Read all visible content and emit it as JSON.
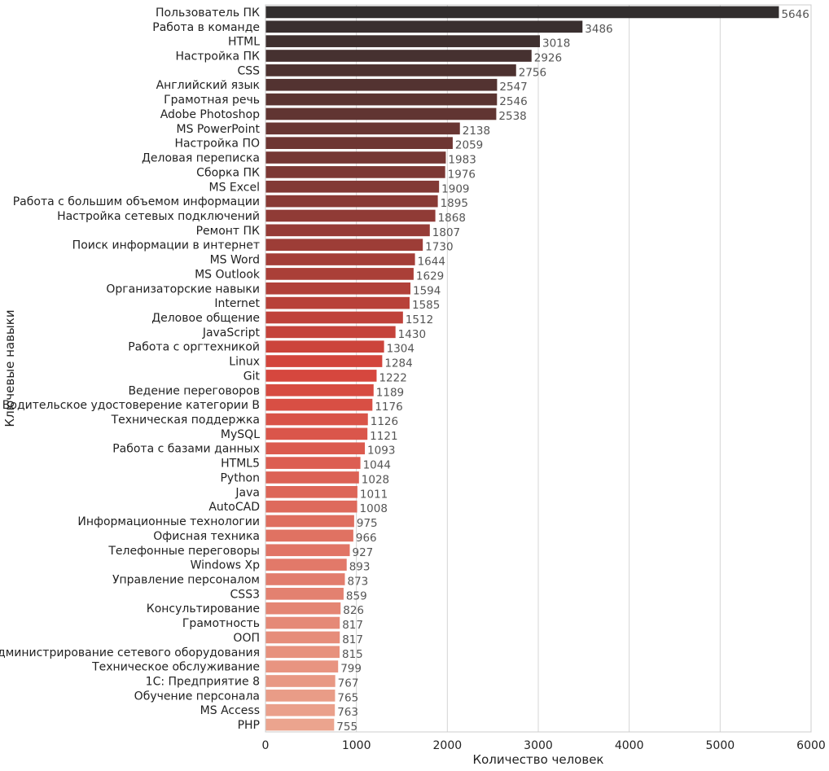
{
  "chart_data": {
    "type": "bar",
    "orientation": "horizontal",
    "xlabel": "Количество человек",
    "ylabel": "Ключевые навыки",
    "xlim": [
      0,
      6000
    ],
    "xticks": [
      0,
      1000,
      2000,
      3000,
      4000,
      5000,
      6000
    ],
    "xtick_labels": [
      "0",
      "1000",
      "2000",
      "3000",
      "4000",
      "5000",
      "6000"
    ],
    "grid": true,
    "palette_dark": "#322E2E",
    "palette_mid": "#D6453C",
    "palette_light": "#EBA48E",
    "categories": [
      "Пользователь ПК",
      "Работа в команде",
      "HTML",
      "Настройка ПК",
      "CSS",
      "Английский язык",
      "Грамотная речь",
      "Adobe Photoshop",
      "MS PowerPoint",
      "Настройка ПО",
      "Деловая переписка",
      "Сборка ПК",
      "MS Excel",
      "Работа с большим объемом информации",
      "Настройка сетевых подключений",
      "Ремонт ПК",
      "Поиск информации в интернет",
      "MS Word",
      "MS Outlook",
      "Организаторские навыки",
      "Internet",
      "Деловое общение",
      "JavaScript",
      "Работа с оргтехникой",
      "Linux",
      "Git",
      "Ведение переговоров",
      "Водительское удостоверение категории B",
      "Техническая поддержка",
      "MySQL",
      "Работа с базами данных",
      "HTML5",
      "Python",
      "Java",
      "AutoCAD",
      "Информационные технологии",
      "Офисная техника",
      "Телефонные переговоры",
      "Windows Xp",
      "Управление персоналом",
      "CSS3",
      "Консультирование",
      "Грамотность",
      "ООП",
      "Администрирование сетевого оборудования",
      "Техническое обслуживание",
      "1С: Предприятие 8",
      "Обучение персонала",
      "MS Access",
      "PHP"
    ],
    "values": [
      5646,
      3486,
      3018,
      2926,
      2756,
      2547,
      2546,
      2538,
      2138,
      2059,
      1983,
      1976,
      1909,
      1895,
      1868,
      1807,
      1730,
      1644,
      1629,
      1594,
      1585,
      1512,
      1430,
      1304,
      1284,
      1222,
      1189,
      1176,
      1126,
      1121,
      1093,
      1044,
      1028,
      1011,
      1008,
      975,
      966,
      927,
      893,
      873,
      859,
      826,
      817,
      817,
      815,
      799,
      767,
      765,
      763,
      755
    ]
  }
}
